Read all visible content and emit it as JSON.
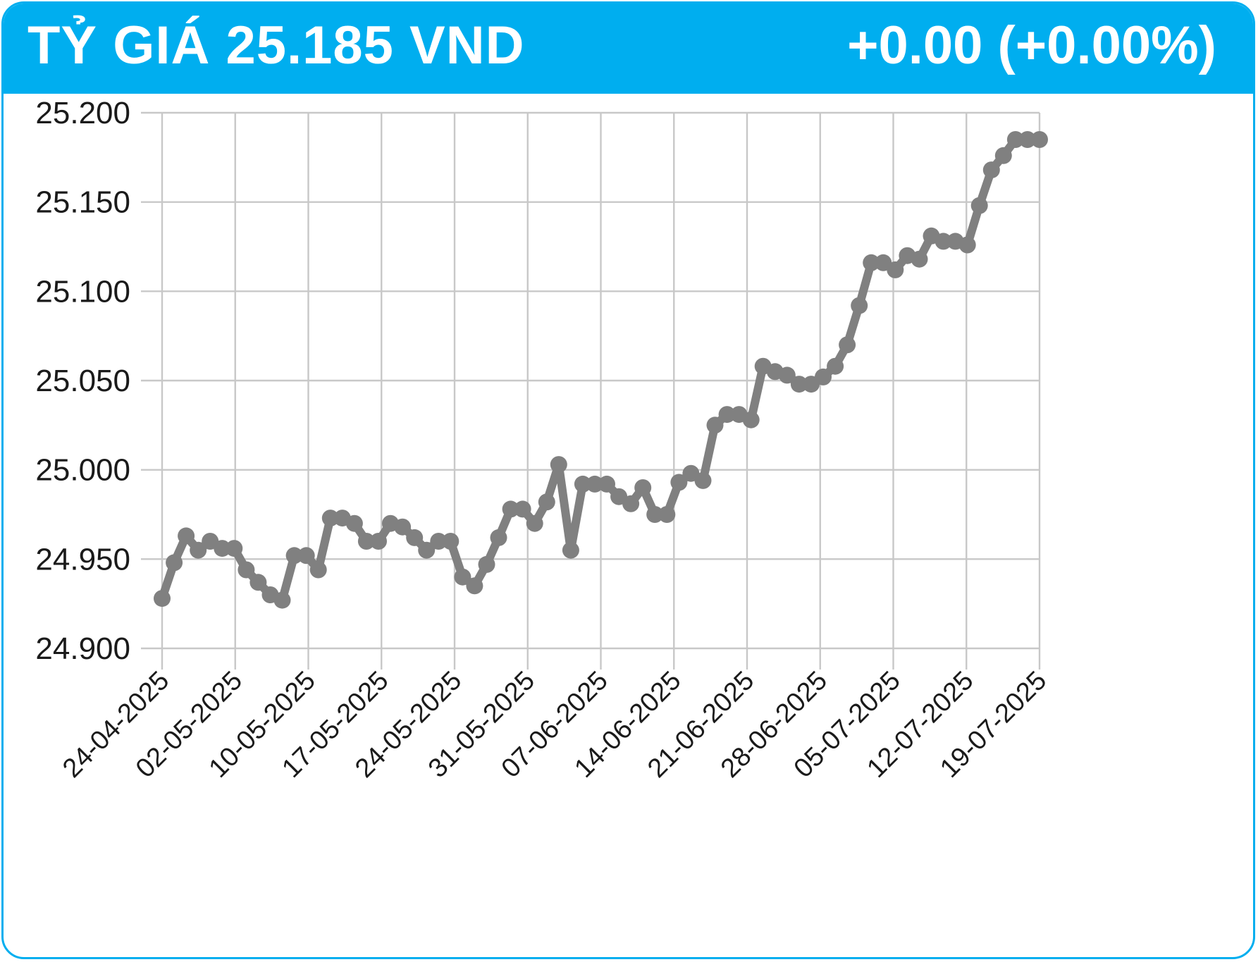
{
  "header": {
    "title": "TỶ GIÁ 25.185 VND",
    "change": "+0.00 (+0.00%)"
  },
  "colors": {
    "accent": "#00aeef",
    "line": "#808080",
    "grid": "#c8c8c8"
  },
  "chart_data": {
    "type": "line",
    "title": "",
    "xlabel": "",
    "ylabel": "",
    "ylim": [
      24900,
      25200
    ],
    "yticks": [
      "25.200",
      "25.150",
      "25.100",
      "25.050",
      "25.000",
      "24.950",
      "24.900"
    ],
    "xticks": [
      "24-04-2025",
      "02-05-2025",
      "10-05-2025",
      "17-05-2025",
      "24-05-2025",
      "31-05-2025",
      "07-06-2025",
      "14-06-2025",
      "21-06-2025",
      "28-06-2025",
      "05-07-2025",
      "12-07-2025",
      "19-07-2025"
    ],
    "grid": true,
    "series": [
      {
        "values": [
          24928,
          24948,
          24963,
          24955,
          24960,
          24956,
          24956,
          24944,
          24937,
          24930,
          24927,
          24952,
          24952,
          24944,
          24973,
          24973,
          24970,
          24960,
          24960,
          24970,
          24968,
          24962,
          24955,
          24960,
          24960,
          24940,
          24935,
          24947,
          24962,
          24978,
          24978,
          24970,
          24982,
          25003,
          24955,
          24992,
          24992,
          24992,
          24985,
          24981,
          24990,
          24975,
          24975,
          24993,
          24998,
          24994,
          25025,
          25031,
          25031,
          25028,
          25058,
          25055,
          25053,
          25048,
          25048,
          25052,
          25058,
          25070,
          25092,
          25116,
          25116,
          25112,
          25120,
          25118,
          25131,
          25128,
          25128,
          25126,
          25148,
          25168,
          25176,
          25185,
          25185,
          25185
        ]
      }
    ]
  }
}
